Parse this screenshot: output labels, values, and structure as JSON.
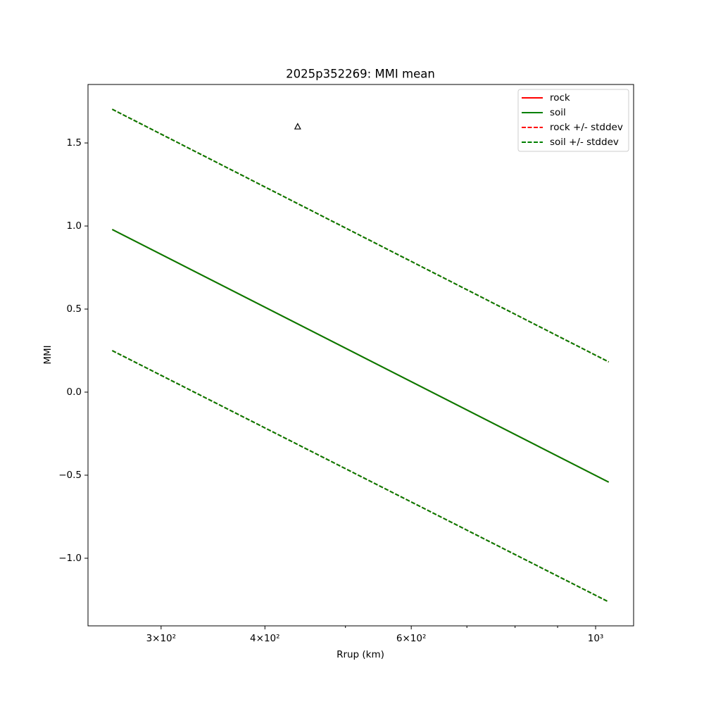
{
  "chart_data": {
    "type": "line",
    "title": "2025p352269: MMI mean",
    "x_label": "Rrup (km)",
    "y_label": "MMI",
    "xscale": "log",
    "xlim": [
      245,
      1111
    ],
    "ylim": [
      -1.407,
      1.852
    ],
    "xticks": [
      {
        "value": 300,
        "label": "3×10²"
      },
      {
        "value": 400,
        "label": "4×10²"
      },
      {
        "value": 600,
        "label": "6×10²"
      },
      {
        "value": 1000,
        "label": "10³"
      }
    ],
    "xminorticks": [
      500,
      700,
      800,
      900
    ],
    "yticks": [
      {
        "value": -1.0,
        "label": "−1.0"
      },
      {
        "value": -0.5,
        "label": "−0.5"
      },
      {
        "value": 0,
        "label": "0.0"
      },
      {
        "value": 0.5,
        "label": "0.5"
      },
      {
        "value": 1.0,
        "label": "1.0"
      },
      {
        "value": 1.5,
        "label": "1.5"
      }
    ],
    "legend": "upper right",
    "x": [
      262,
      1037
    ],
    "series": [
      {
        "name": "rock",
        "color": "#ff0000",
        "style": "solid",
        "values": [
          0.979,
          -0.542
        ]
      },
      {
        "name": "soil",
        "color": "#008000",
        "style": "solid",
        "values": [
          0.979,
          -0.542
        ]
      },
      {
        "name": "rock +/- stddev",
        "color": "#ff0000",
        "style": "dashed",
        "upper": [
          1.703,
          0.182
        ],
        "lower": [
          0.25,
          -1.263
        ]
      },
      {
        "name": "soil +/- stddev",
        "color": "#008000",
        "style": "dashed",
        "upper": [
          1.703,
          0.182
        ],
        "lower": [
          0.25,
          -1.263
        ]
      }
    ],
    "points": {
      "x": [
        438
      ],
      "y": [
        1.597
      ],
      "color": "#000000",
      "marker": "triangle"
    }
  }
}
